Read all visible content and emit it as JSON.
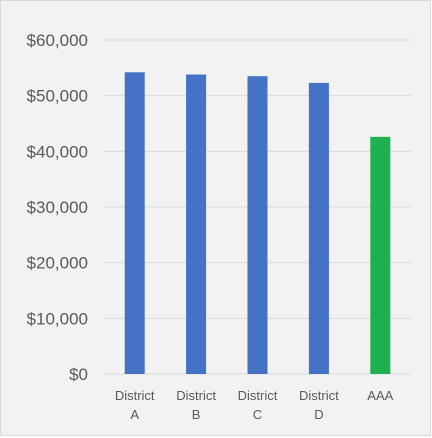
{
  "chart_data": {
    "type": "bar",
    "title": "",
    "xlabel": "",
    "ylabel": "",
    "categories": [
      [
        "District",
        "A"
      ],
      [
        "District",
        "B"
      ],
      [
        "District",
        "C"
      ],
      [
        "District",
        "D"
      ],
      [
        "AAA"
      ]
    ],
    "values": [
      54200,
      53800,
      53500,
      52300,
      42600
    ],
    "bar_colors": [
      "#4472c4",
      "#4472c4",
      "#4472c4",
      "#4472c4",
      "#1fb14f"
    ],
    "ylim": [
      0,
      60000
    ],
    "yticks": [
      0,
      10000,
      20000,
      30000,
      40000,
      50000,
      60000
    ],
    "ytick_labels": [
      "$0",
      "$10,000",
      "$20,000",
      "$30,000",
      "$40,000",
      "$50,000",
      "$60,000"
    ],
    "grid": true,
    "legend": "none"
  },
  "colors": {
    "background": "#f2f2f2",
    "gridline": "#d9d9d9",
    "axis_text": "#595959"
  }
}
